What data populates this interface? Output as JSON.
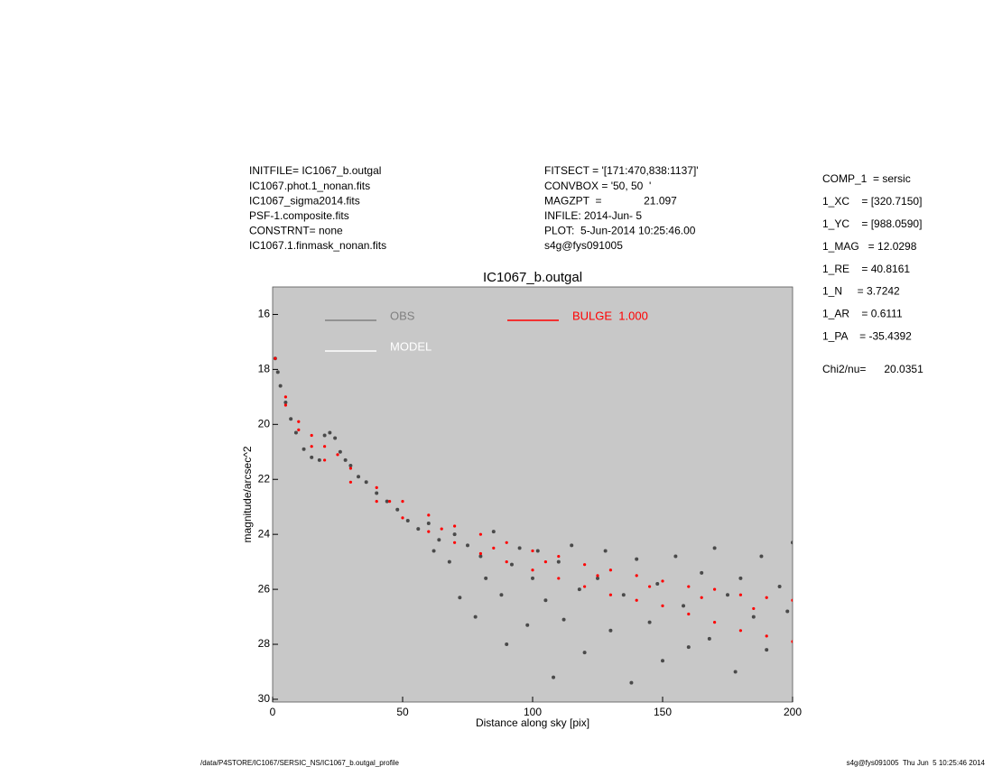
{
  "header": {
    "left": [
      "INITFILE= IC1067_b.outgal",
      "IC1067.phot.1_nonan.fits",
      "IC1067_sigma2014.fits",
      "PSF-1.composite.fits",
      "CONSTRNT= none",
      "IC1067.1.finmask_nonan.fits"
    ],
    "middle": [
      "FITSECT = '[171:470,838:1137]'",
      "CONVBOX = '50, 50  '",
      "MAGZPT  =              21.097",
      "INFILE: 2014-Jun- 5",
      "PLOT:  5-Jun-2014 10:25:46.00",
      "s4g@fys091005"
    ],
    "params": [
      "COMP_1  = sersic",
      "1_XC    = [320.7150]",
      "1_YC    = [988.0590]",
      "1_MAG   = 12.0298",
      "1_RE    = 40.8161",
      "1_N     = 3.7242",
      "1_AR    = 0.6111",
      "1_PA    = -35.4392"
    ],
    "chi": "Chi2/nu=      20.0351"
  },
  "footer": {
    "left": "/data/P4STORE/IC1067/SERSIC_NS/IC1067_b.outgal_profile",
    "right": "s4g@fys091005  Thu Jun  5 10:25:46 2014"
  },
  "chart_data": {
    "type": "scatter",
    "title": "IC1067_b.outgal",
    "x_label": "Distance along sky [pix]",
    "y_label": "magnitude/arcsec^2",
    "xlim": [
      0,
      200
    ],
    "ylim": [
      15,
      30.1
    ],
    "y_inverted": true,
    "xticks": [
      0,
      50,
      100,
      150,
      200
    ],
    "yticks": [
      16,
      18,
      20,
      22,
      24,
      26,
      28,
      30
    ],
    "background": "#c8c8c8",
    "series": [
      {
        "name": "OBS",
        "color": "#4a4a4a",
        "line_color": "#808080",
        "x": [
          1,
          2,
          3,
          5,
          7,
          9,
          12,
          15,
          18,
          20,
          22,
          24,
          26,
          28,
          30,
          33,
          36,
          40,
          44,
          48,
          52,
          56,
          60,
          62,
          64,
          68,
          70,
          72,
          75,
          78,
          80,
          82,
          85,
          88,
          90,
          92,
          95,
          98,
          100,
          102,
          105,
          108,
          110,
          112,
          115,
          118,
          120,
          125,
          128,
          130,
          135,
          138,
          140,
          145,
          148,
          150,
          155,
          158,
          160,
          165,
          168,
          170,
          175,
          178,
          180,
          185,
          188,
          190,
          195,
          198,
          200
        ],
        "values": [
          17.6,
          18.1,
          18.6,
          19.2,
          19.8,
          20.3,
          20.9,
          21.2,
          21.3,
          20.4,
          20.3,
          20.5,
          21.0,
          21.3,
          21.5,
          21.9,
          22.1,
          22.5,
          22.8,
          23.1,
          23.5,
          23.8,
          23.6,
          24.6,
          24.2,
          25.0,
          24.0,
          26.3,
          24.4,
          27.0,
          24.8,
          25.6,
          23.9,
          26.2,
          28.0,
          25.1,
          24.5,
          27.3,
          25.6,
          24.6,
          26.4,
          29.2,
          25.0,
          27.1,
          24.4,
          26.0,
          28.3,
          25.6,
          24.6,
          27.5,
          26.2,
          29.4,
          24.9,
          27.2,
          25.8,
          28.6,
          24.8,
          26.6,
          28.1,
          25.4,
          27.8,
          24.5,
          26.2,
          29.0,
          25.6,
          27.0,
          24.8,
          28.2,
          25.9,
          26.8,
          24.3
        ]
      },
      {
        "name": "MODEL",
        "color": "#ffffff",
        "x": [],
        "values": []
      },
      {
        "name": "BULGE  1.000",
        "color": "#ff0000",
        "x": [
          1,
          5,
          10,
          15,
          20,
          30,
          40,
          50,
          60,
          70,
          80,
          90,
          100,
          110,
          120,
          130,
          140,
          150,
          160,
          170,
          180,
          190,
          200,
          5,
          10,
          15,
          20,
          30,
          40,
          50,
          60,
          70,
          80,
          90,
          100,
          110,
          120,
          130,
          140,
          150,
          160,
          170,
          180,
          190,
          200,
          25,
          45,
          65,
          85,
          105,
          125,
          145,
          165,
          185
        ],
        "values": [
          17.6,
          19.0,
          19.9,
          20.4,
          20.8,
          21.6,
          22.3,
          22.8,
          23.3,
          23.7,
          24.0,
          24.3,
          24.6,
          24.8,
          25.1,
          25.3,
          25.5,
          25.7,
          25.9,
          26.0,
          26.2,
          26.3,
          26.4,
          19.3,
          20.2,
          20.8,
          21.3,
          22.1,
          22.8,
          23.4,
          23.9,
          24.3,
          24.7,
          25.0,
          25.3,
          25.6,
          25.9,
          26.2,
          26.4,
          26.6,
          26.9,
          27.2,
          27.5,
          27.7,
          27.9,
          21.1,
          22.8,
          23.8,
          24.5,
          25.0,
          25.5,
          25.9,
          26.3,
          26.7
        ]
      }
    ]
  }
}
